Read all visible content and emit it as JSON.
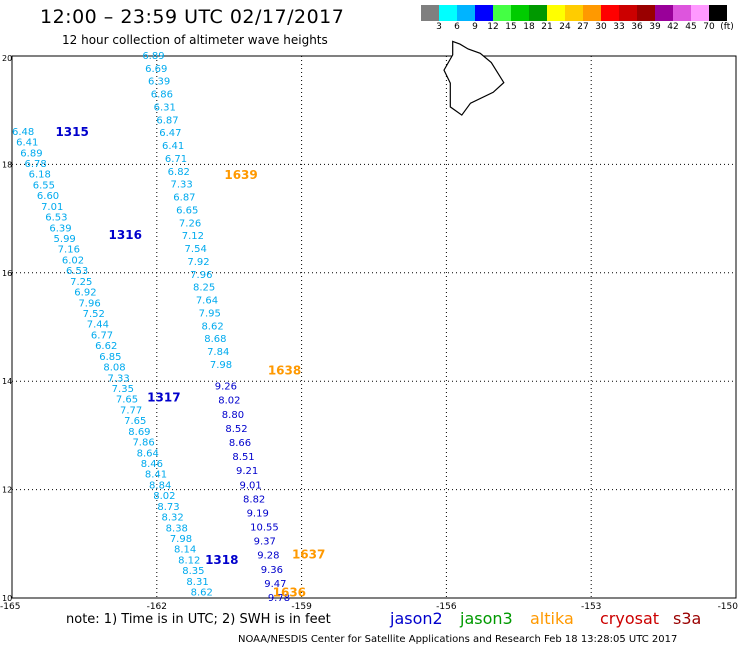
{
  "title": "12:00 – 23:59 UTC 02/17/2017",
  "subtitle": "12 hour collection of altimeter wave heights",
  "colorbar": {
    "colors": [
      "#7f7f7f",
      "#00ffff",
      "#00b4ff",
      "#0000ff",
      "#44ff44",
      "#00cc00",
      "#009900",
      "#ffff00",
      "#ffcc00",
      "#ff9900",
      "#ff0000",
      "#cc0000",
      "#990000",
      "#990099",
      "#dd55dd",
      "#ff99ff",
      "#000000"
    ],
    "labels": [
      "3",
      "6",
      "9",
      "12",
      "15",
      "18",
      "21",
      "24",
      "27",
      "30",
      "33",
      "36",
      "39",
      "42",
      "45",
      "70",
      "(ft)"
    ]
  },
  "axes": {
    "lat_ticks": [
      "20",
      "18",
      "16",
      "14",
      "12",
      "10"
    ],
    "lon_ticks": [
      "-165",
      "-162",
      "-159",
      "-156",
      "-153",
      "-150"
    ]
  },
  "passes": [
    {
      "id": "1315",
      "color": "#0000cc",
      "lon": -164.1,
      "lat": 18.6
    },
    {
      "id": "1316",
      "color": "#0000cc",
      "lon": -163.0,
      "lat": 16.7
    },
    {
      "id": "1317",
      "color": "#0000cc",
      "lon": -162.2,
      "lat": 13.7
    },
    {
      "id": "1318",
      "color": "#0000cc",
      "lon": -161.0,
      "lat": 10.7
    },
    {
      "id": "1639",
      "color": "#ff9900",
      "lon": -160.6,
      "lat": 17.8
    },
    {
      "id": "1638",
      "color": "#ff9900",
      "lon": -159.7,
      "lat": 14.2
    },
    {
      "id": "1637",
      "color": "#ff9900",
      "lon": -159.2,
      "lat": 10.8
    },
    {
      "id": "1636",
      "color": "#ff9900",
      "lon": -159.6,
      "lat": 10.1
    }
  ],
  "tracks": [
    {
      "name": "track-a",
      "color": "#00aaee",
      "lon0": -165.0,
      "lat0": 18.6,
      "lon1": -161.3,
      "lat1": 10.1,
      "values": [
        "6.48",
        "6.41",
        "6.89",
        "6.78",
        "6.18",
        "6.55",
        "6.60",
        "7.01",
        "6.53",
        "6.39",
        "5.99",
        "7.16",
        "6.02",
        "6.53",
        "7.25",
        "6.92",
        "7.96",
        "7.52",
        "7.44",
        "6.77",
        "6.62",
        "6.85",
        "8.08",
        "7.33",
        "7.35",
        "7.65",
        "7.77",
        "7.65",
        "8.69",
        "7.86",
        "8.64",
        "8.46",
        "8.41",
        "8.84",
        "8.02",
        "8.73",
        "8.32",
        "8.38",
        "7.98",
        "8.14",
        "8.12",
        "8.35",
        "8.31",
        "8.62"
      ]
    },
    {
      "name": "track-b",
      "color": "#00aaee",
      "lon0": -162.3,
      "lat0": 20.0,
      "lon1": -160.9,
      "lat1": 14.3,
      "values": [
        "6.89",
        "6.69",
        "6.39",
        "6.86",
        "6.31",
        "6.87",
        "6.47",
        "6.41",
        "6.71",
        "6.82",
        "7.33",
        "6.87",
        "6.65",
        "7.26",
        "7.12",
        "7.54",
        "7.92",
        "7.96",
        "8.25",
        "7.64",
        "7.95",
        "8.62",
        "8.68",
        "7.84",
        "7.98"
      ]
    },
    {
      "name": "track-c",
      "color": "#0000cc",
      "lon0": -160.8,
      "lat0": 13.9,
      "lon1": -159.7,
      "lat1": 10.0,
      "values": [
        "9.26",
        "8.02",
        "8.80",
        "8.52",
        "8.66",
        "8.51",
        "9.21",
        "9.01",
        "8.82",
        "9.19",
        "10.55",
        "9.37",
        "9.28",
        "9.36",
        "9.47",
        "9.78"
      ]
    }
  ],
  "islands": [
    {
      "name": "big-island",
      "points": [
        [
          -155.87,
          20.27
        ],
        [
          -155.72,
          20.22
        ],
        [
          -155.55,
          20.13
        ],
        [
          -155.3,
          20.05
        ],
        [
          -155.07,
          19.88
        ],
        [
          -154.81,
          19.51
        ],
        [
          -155.03,
          19.33
        ],
        [
          -155.5,
          19.13
        ],
        [
          -155.68,
          18.91
        ],
        [
          -155.92,
          19.06
        ],
        [
          -155.92,
          19.5
        ],
        [
          -156.05,
          19.74
        ],
        [
          -155.87,
          20.02
        ],
        [
          -155.87,
          20.27
        ]
      ]
    }
  ],
  "note": "note: 1) Time is in UTC; 2) SWH is in feet",
  "credit": "NOAA/NESDIS Center for Satellite Applications and Research    Feb 18 13:28:05 UTC 2017",
  "legend": [
    {
      "label": "jason2",
      "color": "#0000cc"
    },
    {
      "label": "jason3",
      "color": "#009900"
    },
    {
      "label": "altika",
      "color": "#ff9900"
    },
    {
      "label": "cryosat",
      "color": "#cc0000"
    },
    {
      "label": "s3a",
      "color": "#990000"
    }
  ]
}
